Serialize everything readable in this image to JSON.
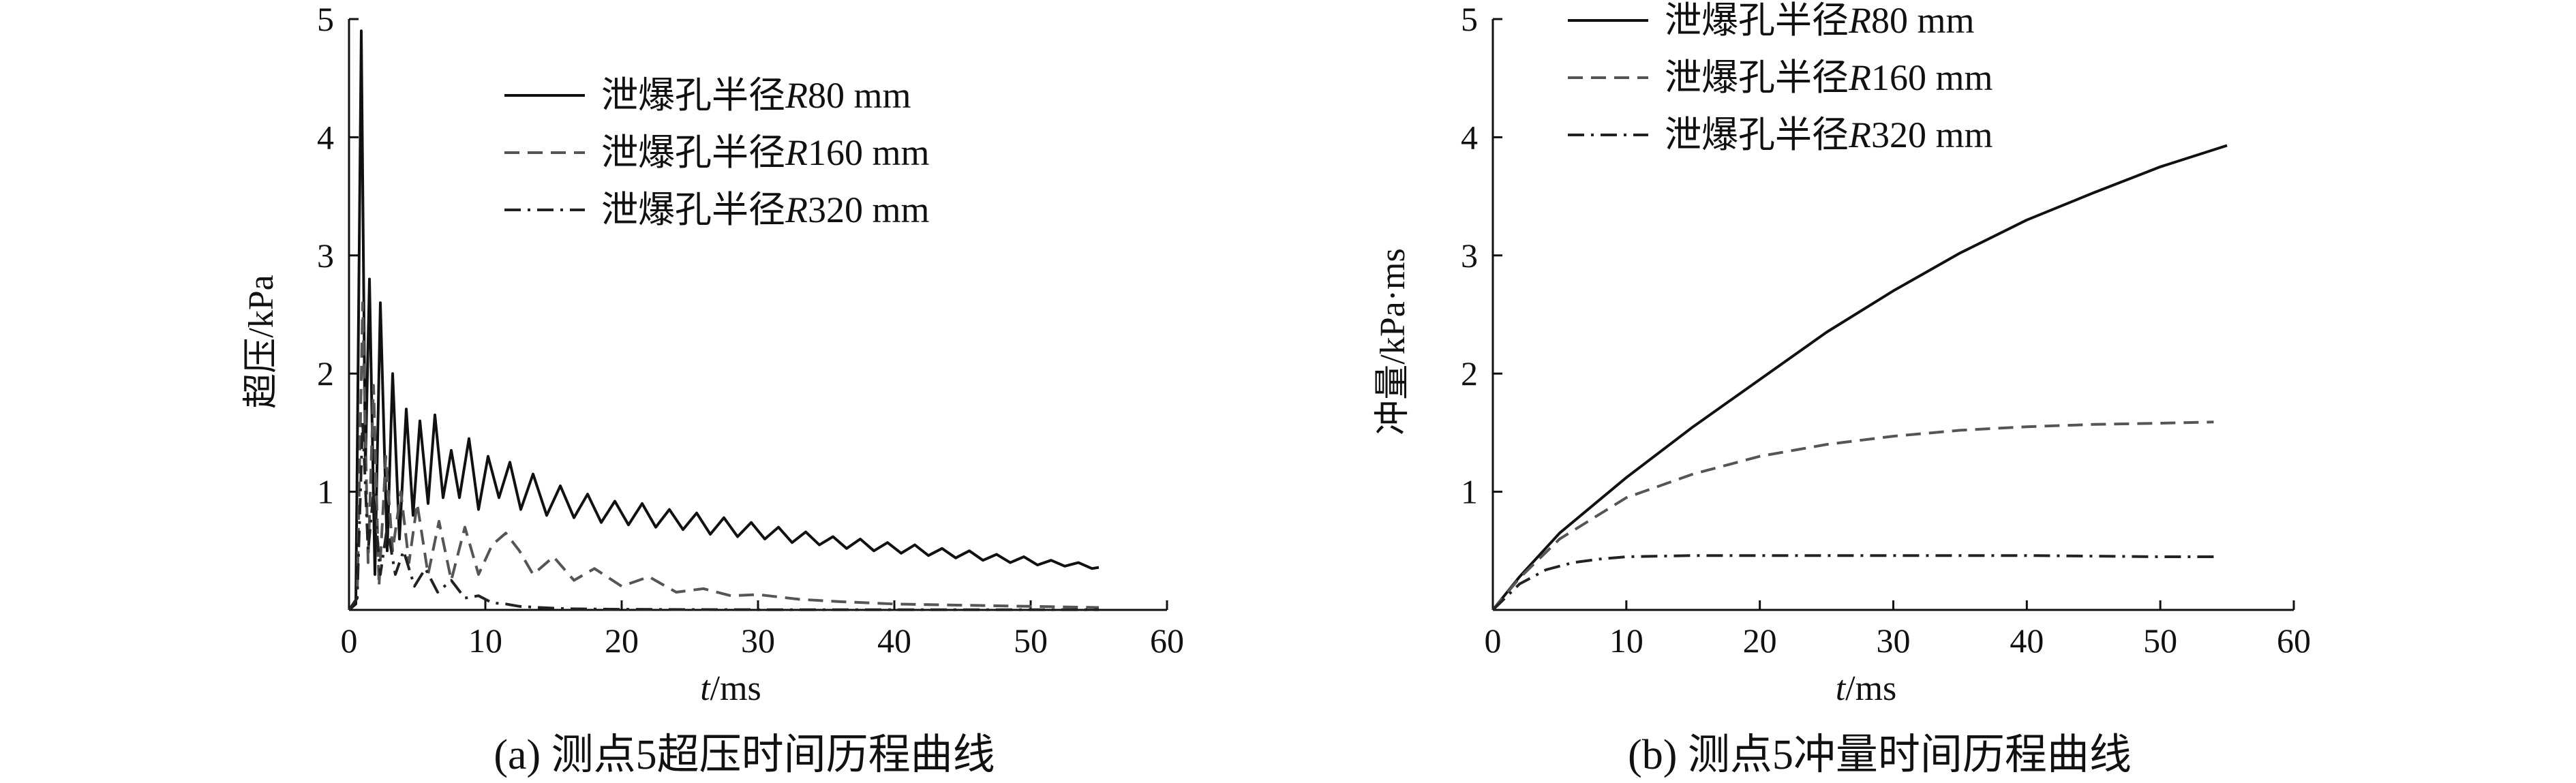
{
  "chart_data": [
    {
      "type": "line",
      "caption": "(a) 测点5超压时间历程曲线",
      "xlabel_italic": "t",
      "xlabel_rest": "/ms",
      "ylabel": "超压/kPa",
      "xlim": [
        0,
        60
      ],
      "ylim": [
        0,
        5
      ],
      "xticks": [
        "0",
        "10",
        "20",
        "30",
        "40",
        "50",
        "60"
      ],
      "yticks": [
        "1",
        "2",
        "3",
        "4",
        "5"
      ],
      "grid": false,
      "legend_position": "top-right",
      "series": [
        {
          "name": "泄爆孔半径R80 mm",
          "name_prefix": "泄爆孔半径",
          "name_italic": "R",
          "name_suffix": "80 mm",
          "style": "solid",
          "color": "#111111",
          "x": [
            0,
            0.5,
            0.9,
            1.2,
            1.5,
            1.9,
            2.3,
            2.8,
            3.2,
            3.7,
            4.2,
            4.7,
            5.2,
            5.8,
            6.3,
            6.9,
            7.5,
            8.1,
            8.8,
            9.5,
            10.2,
            11,
            11.8,
            12.6,
            13.5,
            14.5,
            15.5,
            16.5,
            17.5,
            18.5,
            19.5,
            20.5,
            21.5,
            22.5,
            23.5,
            24.5,
            25.5,
            26.5,
            27.5,
            28.5,
            29.5,
            30.5,
            31.5,
            32.5,
            33.5,
            34.5,
            35.5,
            36.5,
            37.5,
            38.5,
            39.5,
            40.5,
            41.5,
            42.5,
            43.5,
            44.5,
            45.5,
            46.5,
            47.5,
            48.5,
            49.5,
            50.5,
            51.5,
            52.5,
            53.5,
            54.5,
            55
          ],
          "y": [
            0,
            0.05,
            4.9,
            1.2,
            2.8,
            0.3,
            2.6,
            0.5,
            2.0,
            0.6,
            1.7,
            0.8,
            1.6,
            0.9,
            1.65,
            0.95,
            1.35,
            0.95,
            1.45,
            0.85,
            1.3,
            0.95,
            1.25,
            0.85,
            1.15,
            0.8,
            1.05,
            0.78,
            0.98,
            0.74,
            0.92,
            0.72,
            0.9,
            0.7,
            0.85,
            0.68,
            0.82,
            0.64,
            0.78,
            0.62,
            0.74,
            0.6,
            0.7,
            0.57,
            0.66,
            0.55,
            0.62,
            0.52,
            0.6,
            0.5,
            0.57,
            0.48,
            0.55,
            0.46,
            0.52,
            0.44,
            0.5,
            0.42,
            0.47,
            0.4,
            0.45,
            0.38,
            0.42,
            0.37,
            0.4,
            0.35,
            0.36
          ]
        },
        {
          "name": "泄爆孔半径R160 mm",
          "name_prefix": "泄爆孔半径",
          "name_italic": "R",
          "name_suffix": "160 mm",
          "style": "dashed",
          "color": "#555555",
          "x": [
            0,
            0.6,
            1.0,
            1.4,
            1.8,
            2.2,
            2.7,
            3.2,
            3.8,
            4.4,
            5.0,
            5.8,
            6.6,
            7.5,
            8.5,
            9.5,
            10.5,
            11.5,
            12.5,
            13.5,
            15,
            16.5,
            18,
            20,
            22,
            24,
            26,
            28,
            30,
            33,
            36,
            40,
            45,
            50,
            55
          ],
          "y": [
            0,
            0.1,
            2.6,
            0.4,
            1.9,
            0.2,
            1.3,
            0.5,
            1.0,
            0.4,
            0.9,
            0.3,
            0.75,
            0.25,
            0.7,
            0.3,
            0.55,
            0.65,
            0.5,
            0.3,
            0.45,
            0.25,
            0.35,
            0.2,
            0.28,
            0.15,
            0.18,
            0.12,
            0.13,
            0.09,
            0.07,
            0.05,
            0.04,
            0.03,
            0.02
          ]
        },
        {
          "name": "泄爆孔半径R320 mm",
          "name_prefix": "泄爆孔半径",
          "name_italic": "R",
          "name_suffix": "320 mm",
          "style": "dashdot",
          "color": "#222222",
          "x": [
            0,
            0.6,
            1.0,
            1.4,
            1.8,
            2.3,
            2.8,
            3.4,
            4.0,
            4.8,
            5.6,
            6.5,
            7.5,
            8.5,
            9.5,
            10.5,
            11.5,
            12.5,
            14,
            16,
            20,
            25,
            30,
            40,
            50,
            55
          ],
          "y": [
            0,
            0.1,
            1.6,
            0.5,
            1.0,
            0.3,
            0.7,
            0.3,
            0.5,
            0.2,
            0.35,
            0.15,
            0.25,
            0.1,
            0.12,
            0.06,
            0.05,
            0.03,
            0.02,
            0.01,
            0.005,
            0.003,
            0.002,
            0.002,
            0.002,
            0.002
          ]
        }
      ]
    },
    {
      "type": "line",
      "caption": "(b) 测点5冲量时间历程曲线",
      "xlabel_italic": "t",
      "xlabel_rest": "/ms",
      "ylabel": "冲量/kPa·ms",
      "xlim": [
        0,
        60
      ],
      "ylim": [
        0,
        5
      ],
      "xticks": [
        "0",
        "10",
        "20",
        "30",
        "40",
        "50",
        "60"
      ],
      "yticks": [
        "1",
        "2",
        "3",
        "4",
        "5"
      ],
      "grid": false,
      "legend_position": "top-left",
      "series": [
        {
          "name": "泄爆孔半径R80 mm",
          "name_prefix": "泄爆孔半径",
          "name_italic": "R",
          "name_suffix": "80 mm",
          "style": "solid",
          "color": "#111111",
          "x": [
            0,
            2,
            5,
            10,
            15,
            20,
            25,
            30,
            35,
            40,
            45,
            50,
            55
          ],
          "y": [
            0,
            0.28,
            0.65,
            1.12,
            1.55,
            1.95,
            2.35,
            2.7,
            3.02,
            3.3,
            3.53,
            3.75,
            3.93
          ]
        },
        {
          "name": "泄爆孔半径R160 mm",
          "name_prefix": "泄爆孔半径",
          "name_italic": "R",
          "name_suffix": "160 mm",
          "style": "dashed",
          "color": "#555555",
          "x": [
            0,
            2,
            5,
            10,
            15,
            20,
            25,
            30,
            35,
            40,
            45,
            50,
            54
          ],
          "y": [
            0,
            0.27,
            0.6,
            0.95,
            1.15,
            1.3,
            1.4,
            1.47,
            1.52,
            1.55,
            1.57,
            1.58,
            1.59
          ]
        },
        {
          "name": "泄爆孔半径R320 mm",
          "name_prefix": "泄爆孔半径",
          "name_italic": "R",
          "name_suffix": "320 mm",
          "style": "dashdot",
          "color": "#222222",
          "x": [
            0,
            2,
            4,
            6,
            8,
            10,
            15,
            20,
            30,
            40,
            50,
            54
          ],
          "y": [
            0,
            0.22,
            0.34,
            0.4,
            0.43,
            0.45,
            0.46,
            0.46,
            0.46,
            0.46,
            0.45,
            0.45
          ]
        }
      ]
    }
  ]
}
